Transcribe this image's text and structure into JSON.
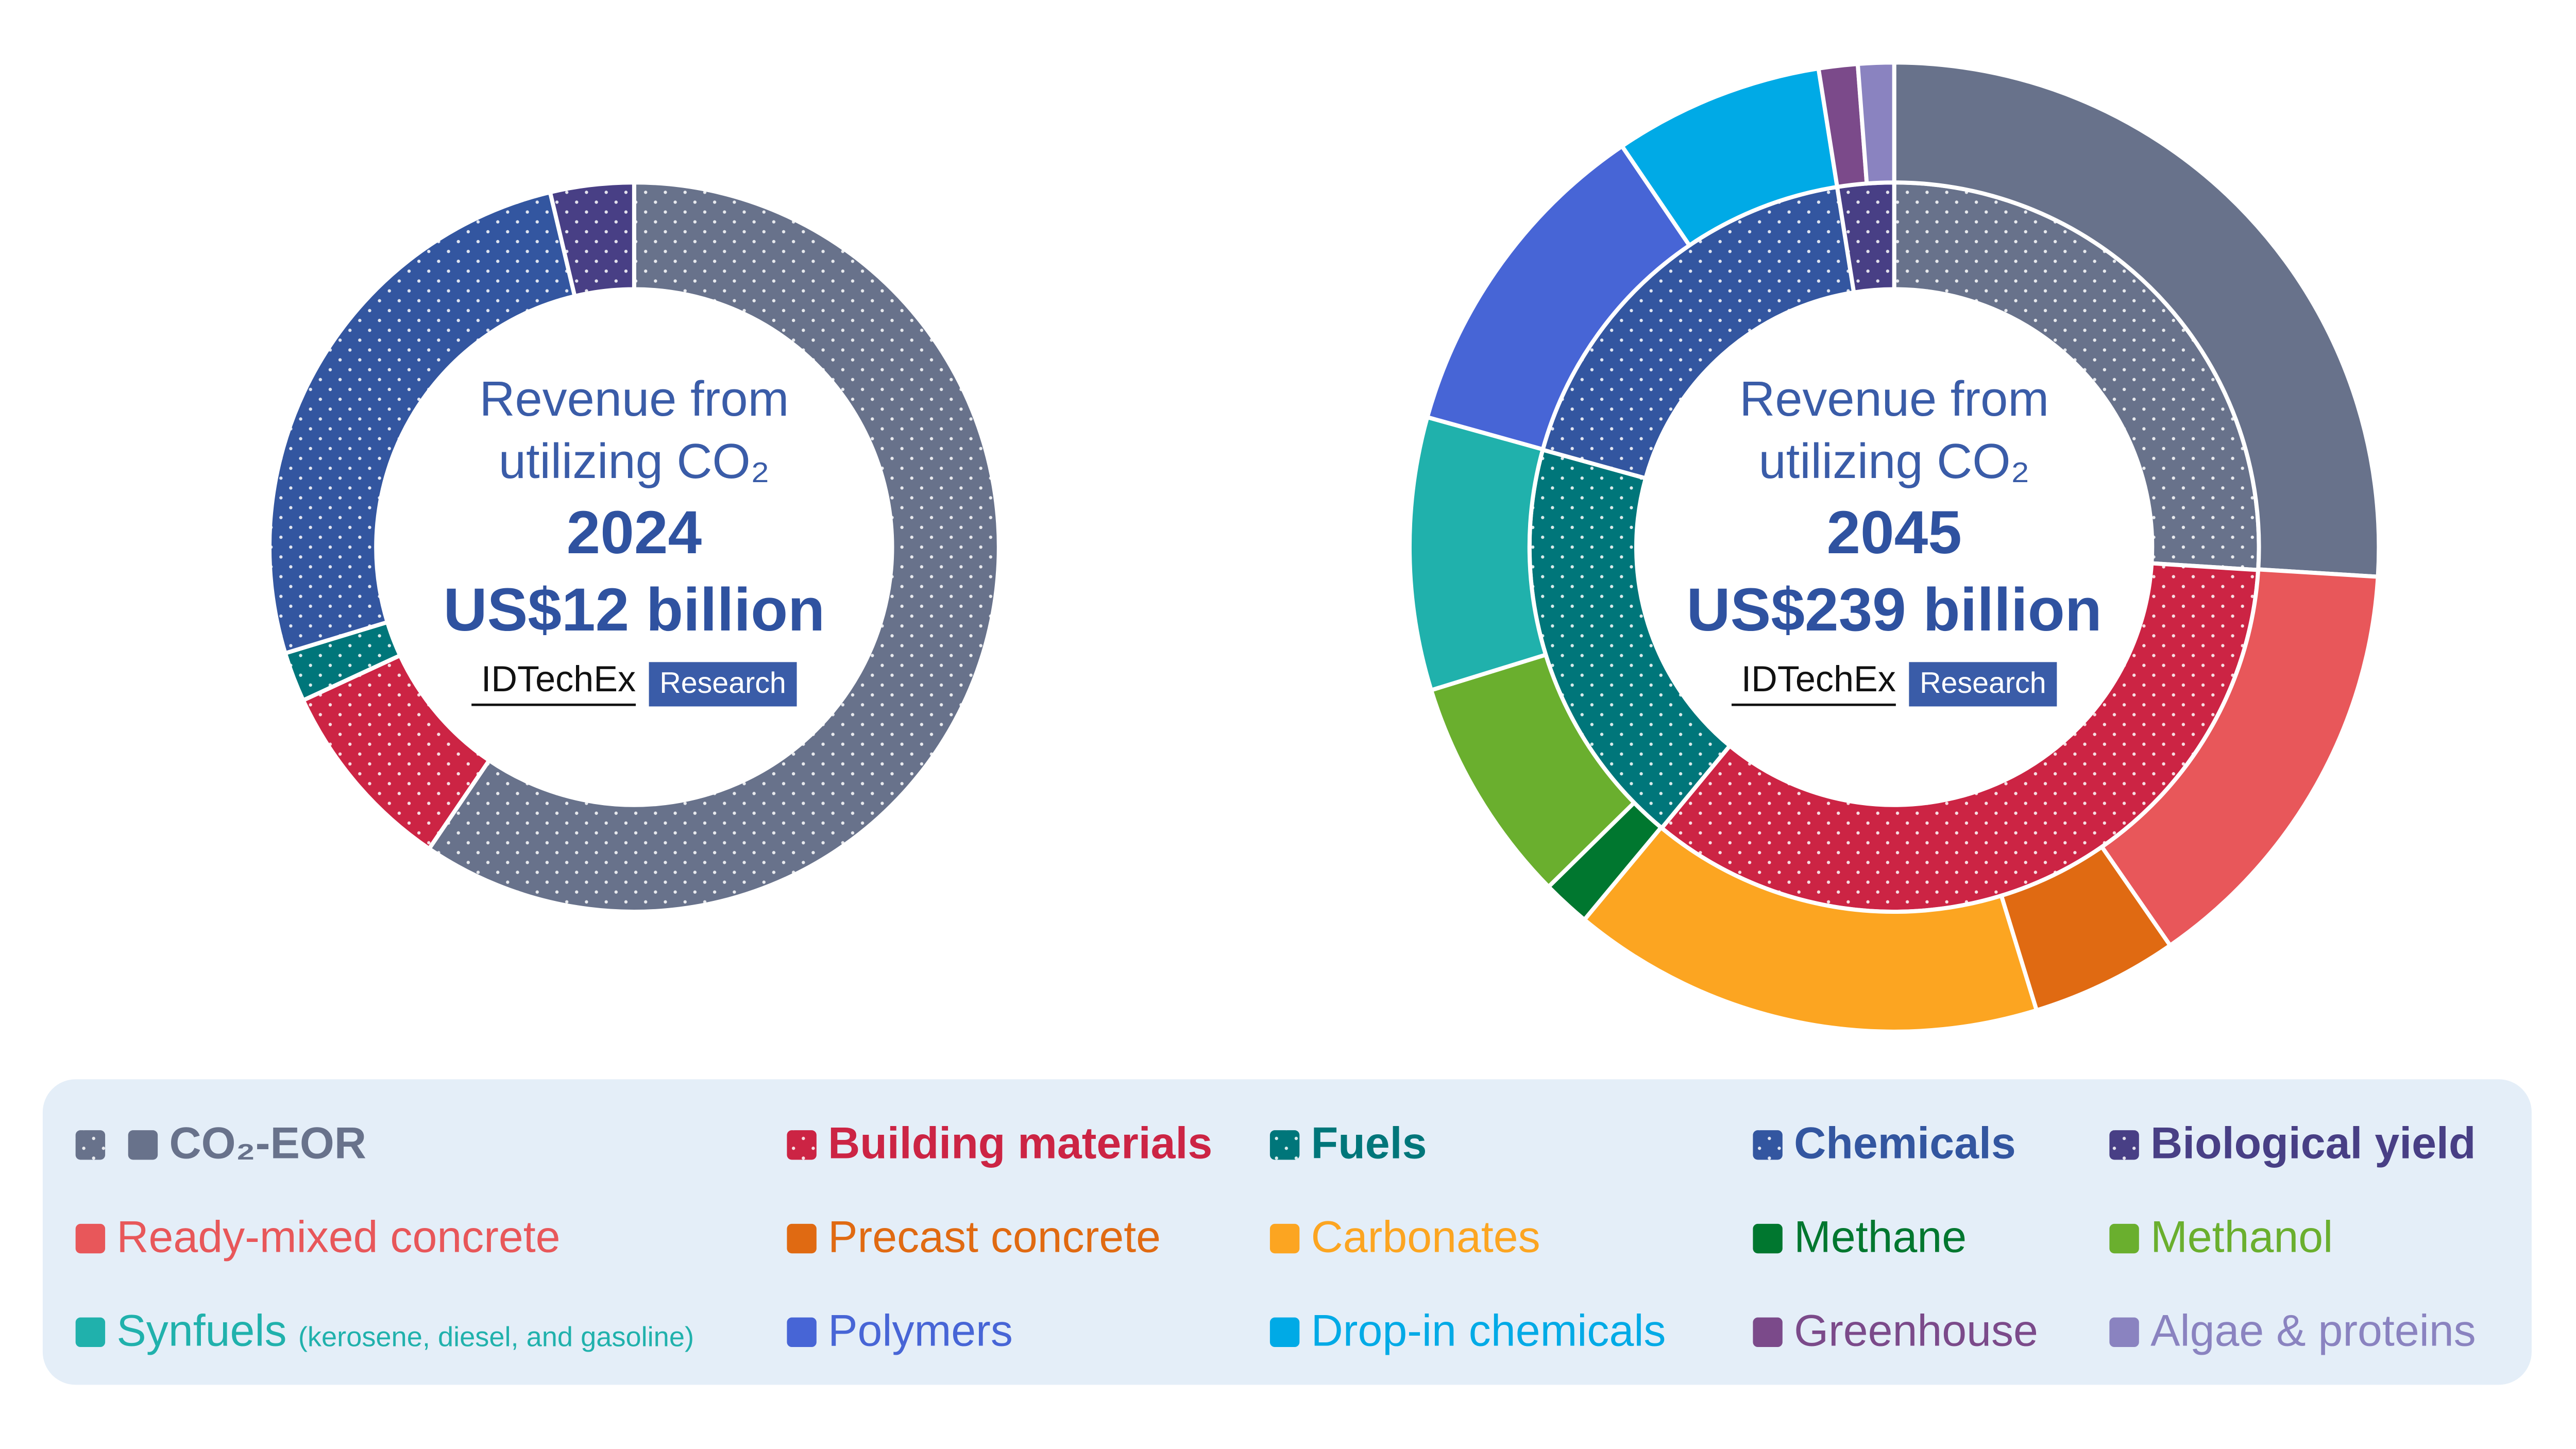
{
  "chart_data": [
    {
      "type": "donut",
      "center": {
        "line1": "Revenue from",
        "line2": "utilizing CO₂",
        "year": "2024",
        "total": "US$12 billion"
      },
      "rings": [
        {
          "values": [
            59.5,
            8.6,
            2.2,
            26,
            3.7
          ],
          "colors": [
            "#68728b",
            "#cc2444",
            "#00767a",
            "#3356a0",
            "#483f85"
          ],
          "dotted": true
        }
      ]
    },
    {
      "type": "donut",
      "center": {
        "line1": "Revenue from",
        "line2": "utilizing CO₂",
        "year": "2045",
        "total": "US$239 billion"
      },
      "rings": [
        {
          "values": [
            26,
            35,
            18.3,
            18.2,
            2.5
          ],
          "colors": [
            "#68728b",
            "#cc2444",
            "#00767a",
            "#3356a0",
            "#483f85"
          ],
          "dotted": true
        },
        {
          "values": [
            26,
            14.4,
            4.9,
            15.8,
            1.6,
            7.6,
            9.1,
            11.2,
            7.0,
            1.3,
            1.2
          ],
          "colors": [
            "#68728b",
            "#e8575a",
            "#e06a12",
            "#fca521",
            "#00772f",
            "#6aaf2e",
            "#20b1ac",
            "#4765d6",
            "#00aae6",
            "#7b4a8a",
            "#8a83c0"
          ],
          "dotted": false
        }
      ]
    }
  ],
  "logo": {
    "brand": "IDTechEx",
    "tag": "Research"
  },
  "legend": [
    {
      "label": "CO₂-EOR",
      "color": "#68728b",
      "swatch": "dotted-and-solid",
      "bold": true
    },
    {
      "label": "Building materials",
      "color": "#cc2444",
      "swatch": "dotted",
      "bold": true
    },
    {
      "label": "Fuels",
      "color": "#00767a",
      "swatch": "dotted",
      "bold": true
    },
    {
      "label": "Chemicals",
      "color": "#3356a0",
      "swatch": "dotted",
      "bold": true
    },
    {
      "label": "Biological yield",
      "color": "#483f85",
      "swatch": "dotted",
      "bold": true
    },
    {
      "label": "Ready-mixed concrete",
      "color": "#e8575a",
      "swatch": "solid",
      "bold": false
    },
    {
      "label": "Precast concrete",
      "color": "#e06a12",
      "swatch": "solid",
      "bold": false
    },
    {
      "label": "Carbonates",
      "color": "#fca521",
      "swatch": "solid",
      "bold": false
    },
    {
      "label": "Methane",
      "color": "#00772f",
      "swatch": "solid",
      "bold": false
    },
    {
      "label": "Methanol",
      "color": "#6aaf2e",
      "swatch": "solid",
      "bold": false
    },
    {
      "label": "Synfuels",
      "note": "(kerosene, diesel, and gasoline)",
      "color": "#20b1ac",
      "swatch": "solid",
      "bold": false
    },
    {
      "label": "Polymers",
      "color": "#4765d6",
      "swatch": "solid",
      "bold": false
    },
    {
      "label": "Drop-in chemicals",
      "color": "#00aae6",
      "swatch": "solid",
      "bold": false
    },
    {
      "label": "Greenhouse",
      "color": "#7b4a8a",
      "swatch": "solid",
      "bold": false
    },
    {
      "label": "Algae & proteins",
      "color": "#8a83c0",
      "swatch": "solid",
      "bold": false
    }
  ]
}
